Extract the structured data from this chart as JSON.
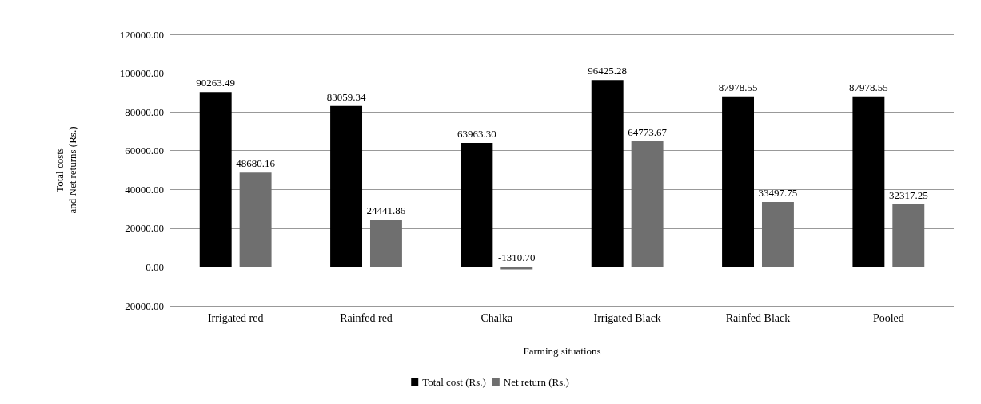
{
  "chart_data": {
    "type": "bar",
    "xlabel": "Farming situations",
    "ylabel": "Total costs\nand Net returns (Rs.)",
    "categories": [
      "Irrigated red",
      "Rainfed red",
      "Chalka",
      "Irrigated Black",
      "Rainfed Black",
      "Pooled"
    ],
    "series": [
      {
        "name": "Total cost (Rs.)",
        "color": "#000000",
        "values": [
          90263.49,
          83059.34,
          63963.3,
          96425.28,
          87978.55,
          87978.55
        ],
        "value_labels": [
          "90263.49",
          "83059.34",
          "63963.30",
          "96425.28",
          "87978.55",
          "87978.55"
        ]
      },
      {
        "name": "Net return (Rs.)",
        "color": "#6f6f6f",
        "values": [
          48680.16,
          24441.86,
          -1310.7,
          64773.67,
          33497.75,
          32317.25
        ],
        "value_labels": [
          "48680.16",
          "24441.86",
          "-1310.70",
          "64773.67",
          "33497.75",
          "32317.25"
        ]
      }
    ],
    "ylim": [
      -20000,
      120000
    ],
    "yticks": [
      {
        "value": -20000,
        "label": "-20000.00"
      },
      {
        "value": 0,
        "label": "0.00"
      },
      {
        "value": 20000,
        "label": "20000.00"
      },
      {
        "value": 40000,
        "label": "40000.00"
      },
      {
        "value": 60000,
        "label": "60000.00"
      },
      {
        "value": 80000,
        "label": "80000.00"
      },
      {
        "value": 100000,
        "label": "100000.00"
      },
      {
        "value": 120000,
        "label": "120000.00"
      }
    ],
    "grid": "y",
    "legend": "bottom"
  }
}
